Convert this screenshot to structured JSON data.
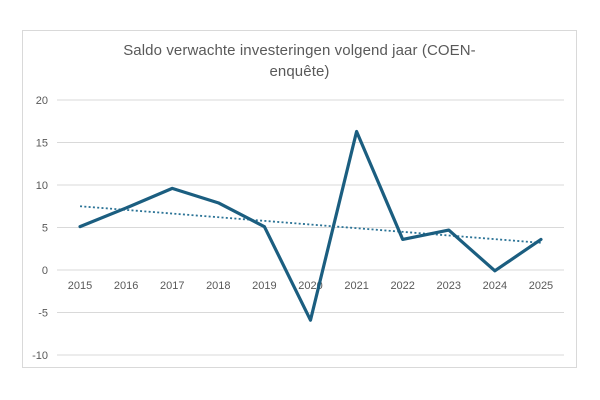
{
  "chart_data": {
    "type": "line",
    "title": "Saldo verwachte investeringen volgend jaar (COEN-enquête)",
    "categories": [
      "2015",
      "2016",
      "2017",
      "2018",
      "2019",
      "2020",
      "2021",
      "2022",
      "2023",
      "2024",
      "2025"
    ],
    "series": [
      {
        "name": "Saldo verwachte investeringen volgend jaar",
        "values": [
          5.1,
          7.3,
          9.6,
          7.9,
          5.1,
          -5.9,
          16.3,
          3.6,
          4.7,
          -0.1,
          3.6
        ]
      }
    ],
    "trendline": {
      "type": "linear",
      "start_value": 7.5,
      "end_value": 3.2,
      "style": "dotted"
    },
    "y_ticks": [
      "20",
      "15",
      "10",
      "5",
      "0",
      "-5",
      "-10"
    ],
    "ylim": [
      -10,
      20
    ],
    "xlabel": "",
    "ylabel": "",
    "grid": true,
    "legend_position": "none",
    "colors": {
      "series_line": "#1b5e80",
      "trendline": "#2b7396",
      "gridline": "#d9d9d9",
      "axis_text": "#595959",
      "title_text": "#595959",
      "frame_border": "#d9d9d9",
      "background": "#ffffff"
    }
  }
}
